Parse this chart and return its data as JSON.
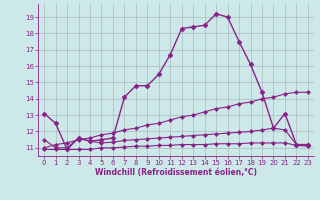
{
  "xlabel": "Windchill (Refroidissement éolien,°C)",
  "background_color": "#cce8e8",
  "grid_color": "#aabbbb",
  "line_color": "#882288",
  "xlim": [
    -0.5,
    23.5
  ],
  "ylim": [
    10.5,
    19.8
  ],
  "yticks": [
    11,
    12,
    13,
    14,
    15,
    16,
    17,
    18,
    19
  ],
  "xticks": [
    0,
    1,
    2,
    3,
    4,
    5,
    6,
    7,
    8,
    9,
    10,
    11,
    12,
    13,
    14,
    15,
    16,
    17,
    18,
    19,
    20,
    21,
    22,
    23
  ],
  "series": [
    {
      "x": [
        0,
        1,
        2,
        3,
        4,
        5,
        6,
        7,
        8,
        9,
        10,
        11,
        12,
        13,
        14,
        15,
        16,
        17,
        18,
        19,
        20,
        21,
        22,
        23
      ],
      "y": [
        13.1,
        12.5,
        10.9,
        11.6,
        11.4,
        11.5,
        11.6,
        14.1,
        14.8,
        14.8,
        15.5,
        16.7,
        18.3,
        18.4,
        18.5,
        19.2,
        19.0,
        17.5,
        16.1,
        14.4,
        12.2,
        13.1,
        11.2,
        11.2
      ],
      "marker": "D",
      "markersize": 2.5,
      "linewidth": 1.0
    },
    {
      "x": [
        0,
        1,
        2,
        3,
        4,
        5,
        6,
        7,
        8,
        9,
        10,
        11,
        12,
        13,
        14,
        15,
        16,
        17,
        18,
        19,
        20,
        21,
        22,
        23
      ],
      "y": [
        11.0,
        11.2,
        11.3,
        11.5,
        11.6,
        11.8,
        11.9,
        12.1,
        12.2,
        12.4,
        12.5,
        12.7,
        12.9,
        13.0,
        13.2,
        13.4,
        13.5,
        13.7,
        13.8,
        14.0,
        14.1,
        14.3,
        14.4,
        14.4
      ],
      "marker": "D",
      "markersize": 2.0,
      "linewidth": 0.8
    },
    {
      "x": [
        0,
        1,
        2,
        3,
        4,
        5,
        6,
        7,
        8,
        9,
        10,
        11,
        12,
        13,
        14,
        15,
        16,
        17,
        18,
        19,
        20,
        21,
        22,
        23
      ],
      "y": [
        11.5,
        11.0,
        11.0,
        11.6,
        11.4,
        11.3,
        11.35,
        11.45,
        11.5,
        11.55,
        11.6,
        11.65,
        11.7,
        11.75,
        11.8,
        11.85,
        11.9,
        11.95,
        12.0,
        12.1,
        12.2,
        12.1,
        11.2,
        11.15
      ],
      "marker": "D",
      "markersize": 2.0,
      "linewidth": 0.8
    },
    {
      "x": [
        0,
        1,
        2,
        3,
        4,
        5,
        6,
        7,
        8,
        9,
        10,
        11,
        12,
        13,
        14,
        15,
        16,
        17,
        18,
        19,
        20,
        21,
        22,
        23
      ],
      "y": [
        10.9,
        10.9,
        10.9,
        10.9,
        10.9,
        11.0,
        11.0,
        11.05,
        11.1,
        11.1,
        11.15,
        11.15,
        11.2,
        11.2,
        11.2,
        11.25,
        11.25,
        11.25,
        11.3,
        11.3,
        11.3,
        11.3,
        11.15,
        11.1
      ],
      "marker": "D",
      "markersize": 2.0,
      "linewidth": 0.8
    }
  ]
}
